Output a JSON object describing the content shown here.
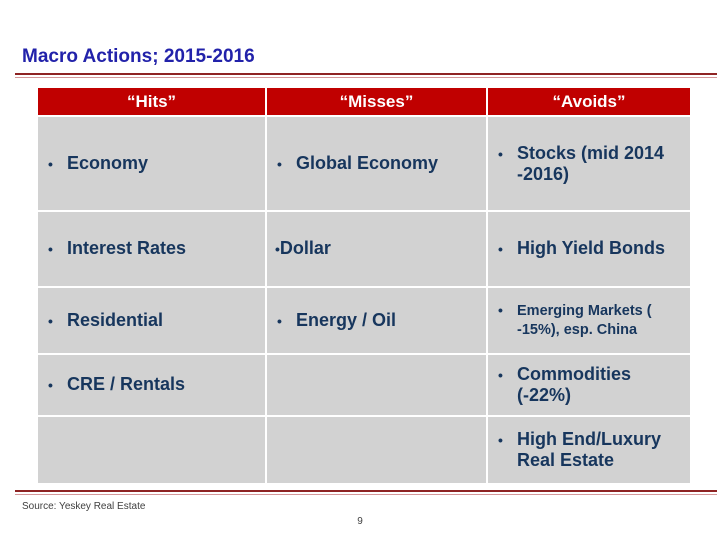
{
  "slide": {
    "title": "Macro Actions; 2015-2016",
    "source_note": "Source: Yeskey Real Estate",
    "page_number": "9"
  },
  "colors": {
    "page_bg": "#ffffff",
    "title_blue": "#2222aa",
    "header_red": "#c00000",
    "cell_gray": "#d2d2d2",
    "text_navy": "#17365d",
    "rule_dark": "#8e2323",
    "rule_light": "#d4989a",
    "note_gray": "#404040"
  },
  "table": {
    "bullet_glyph": "•",
    "headers": [
      "“Hits”",
      "“Misses”",
      "“Avoids”"
    ],
    "rows": [
      {
        "cells": [
          {
            "items": [
              {
                "text": "Economy"
              }
            ]
          },
          {
            "items": [
              {
                "text": "Global Economy"
              }
            ]
          },
          {
            "items": [
              {
                "text": "Stocks (mid 2014\n-2016)"
              }
            ]
          }
        ]
      },
      {
        "cells": [
          {
            "items": [
              {
                "text": "Interest Rates"
              }
            ]
          },
          {
            "items": [
              {
                "text": "Dollar",
                "tight": true
              }
            ]
          },
          {
            "items": [
              {
                "text": "High Yield Bonds"
              }
            ]
          }
        ]
      },
      {
        "cells": [
          {
            "items": [
              {
                "text": "Residential"
              }
            ]
          },
          {
            "items": [
              {
                "text": "Energy / Oil"
              }
            ]
          },
          {
            "items": [
              {
                "text": "Emerging Markets (\n-15%), esp. China",
                "small": true
              }
            ]
          }
        ]
      },
      {
        "cells": [
          {
            "items": [
              {
                "text": "CRE / Rentals"
              }
            ]
          },
          {
            "items": []
          },
          {
            "items": [
              {
                "text": "Commodities\n(-22%)"
              }
            ]
          }
        ]
      },
      {
        "cells": [
          {
            "items": []
          },
          {
            "items": []
          },
          {
            "items": [
              {
                "text": "High End/Luxury\nReal Estate"
              }
            ]
          }
        ]
      }
    ]
  }
}
